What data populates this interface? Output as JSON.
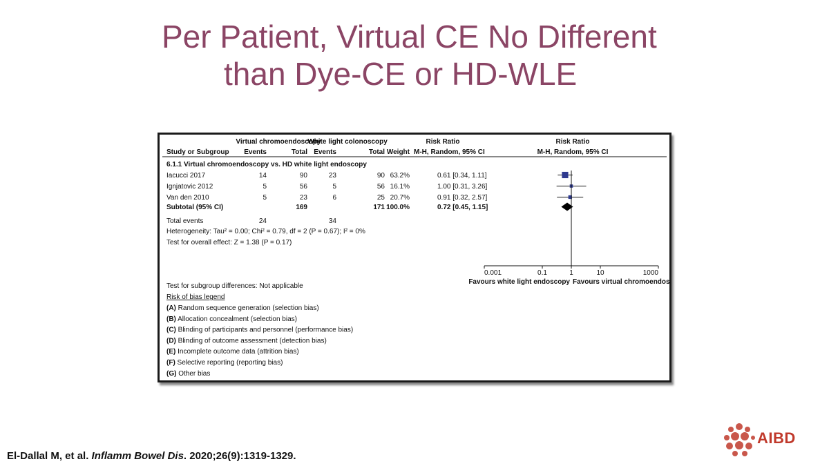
{
  "slide": {
    "title_line1": "Per Patient, Virtual CE No Different",
    "title_line2": "than Dye-CE or HD-WLE",
    "citation_authors": "El-Dallal M, et al.",
    "citation_journal": "Inflamm Bowel Dis",
    "citation_rest": "2020;26(9):1319-1329.",
    "logo_text": "AIBD",
    "title_color": "#8b4565",
    "logo_color": "#c0392b"
  },
  "chart_data": {
    "type": "forest",
    "group_header_1": "Virtual chromoendoscopy",
    "group_header_2": "White light colonoscopy",
    "rr_header": "Risk Ratio",
    "rr_method": "M-H, Random, 95% CI",
    "col_study": "Study or Subgroup",
    "col_events": "Events",
    "col_total": "Total",
    "col_weight": "Weight",
    "subgroup": "6.1.1 Virtual chromoendoscopy vs. HD white light endoscopy",
    "studies": [
      {
        "name": "Iacucci 2017",
        "ve": "14",
        "vt": "90",
        "we": "23",
        "wt": "90",
        "weight": "63.2%",
        "ci_text": "0.61 [0.34, 1.11]",
        "rr": 0.61,
        "lo": 0.34,
        "hi": 1.11
      },
      {
        "name": "Ignjatovic 2012",
        "ve": "5",
        "vt": "56",
        "we": "5",
        "wt": "56",
        "weight": "16.1%",
        "ci_text": "1.00 [0.31, 3.26]",
        "rr": 1.0,
        "lo": 0.31,
        "hi": 3.26
      },
      {
        "name": "Van den 2010",
        "ve": "5",
        "vt": "23",
        "we": "6",
        "wt": "25",
        "weight": "20.7%",
        "ci_text": "0.91 [0.32, 2.57]",
        "rr": 0.91,
        "lo": 0.32,
        "hi": 2.57
      }
    ],
    "subtotal": {
      "name": "Subtotal (95% CI)",
      "vt": "169",
      "wt": "171",
      "weight": "100.0%",
      "ci_text": "0.72 [0.45, 1.15]",
      "rr": 0.72,
      "lo": 0.45,
      "hi": 1.15
    },
    "total_events": {
      "label": "Total events",
      "v": "24",
      "w": "34"
    },
    "heterogeneity": "Heterogeneity: Tau² = 0.00; Chi² = 0.79, df = 2 (P = 0.67); I² = 0%",
    "overall_effect": "Test for overall effect: Z = 1.38 (P = 0.17)",
    "x_scale": "log",
    "xlim": [
      0.001,
      1000
    ],
    "x_ticks": [
      {
        "value": 0.001,
        "label": "0.001"
      },
      {
        "value": 0.1,
        "label": "0.1"
      },
      {
        "value": 1,
        "label": "1"
      },
      {
        "value": 10,
        "label": "10"
      },
      {
        "value": 1000,
        "label": "1000"
      }
    ],
    "favours_left": "Favours white light endoscopy",
    "favours_right": "Favours virtual chromoendoscopy",
    "subgroup_diff": "Test for subgroup differences: Not applicable",
    "bias_title": "Risk of bias legend",
    "bias_items": [
      {
        "key": "(A)",
        "text": "Random sequence generation (selection bias)"
      },
      {
        "key": "(B)",
        "text": "Allocation concealment (selection bias)"
      },
      {
        "key": "(C)",
        "text": "Blinding of participants and personnel (performance bias)"
      },
      {
        "key": "(D)",
        "text": "Blinding of outcome assessment (detection bias)"
      },
      {
        "key": "(E)",
        "text": "Incomplete outcome data (attrition bias)"
      },
      {
        "key": "(F)",
        "text": "Selective reporting (reporting bias)"
      },
      {
        "key": "(G)",
        "text": "Other bias"
      }
    ],
    "marker_color": "#2f3a8f"
  }
}
